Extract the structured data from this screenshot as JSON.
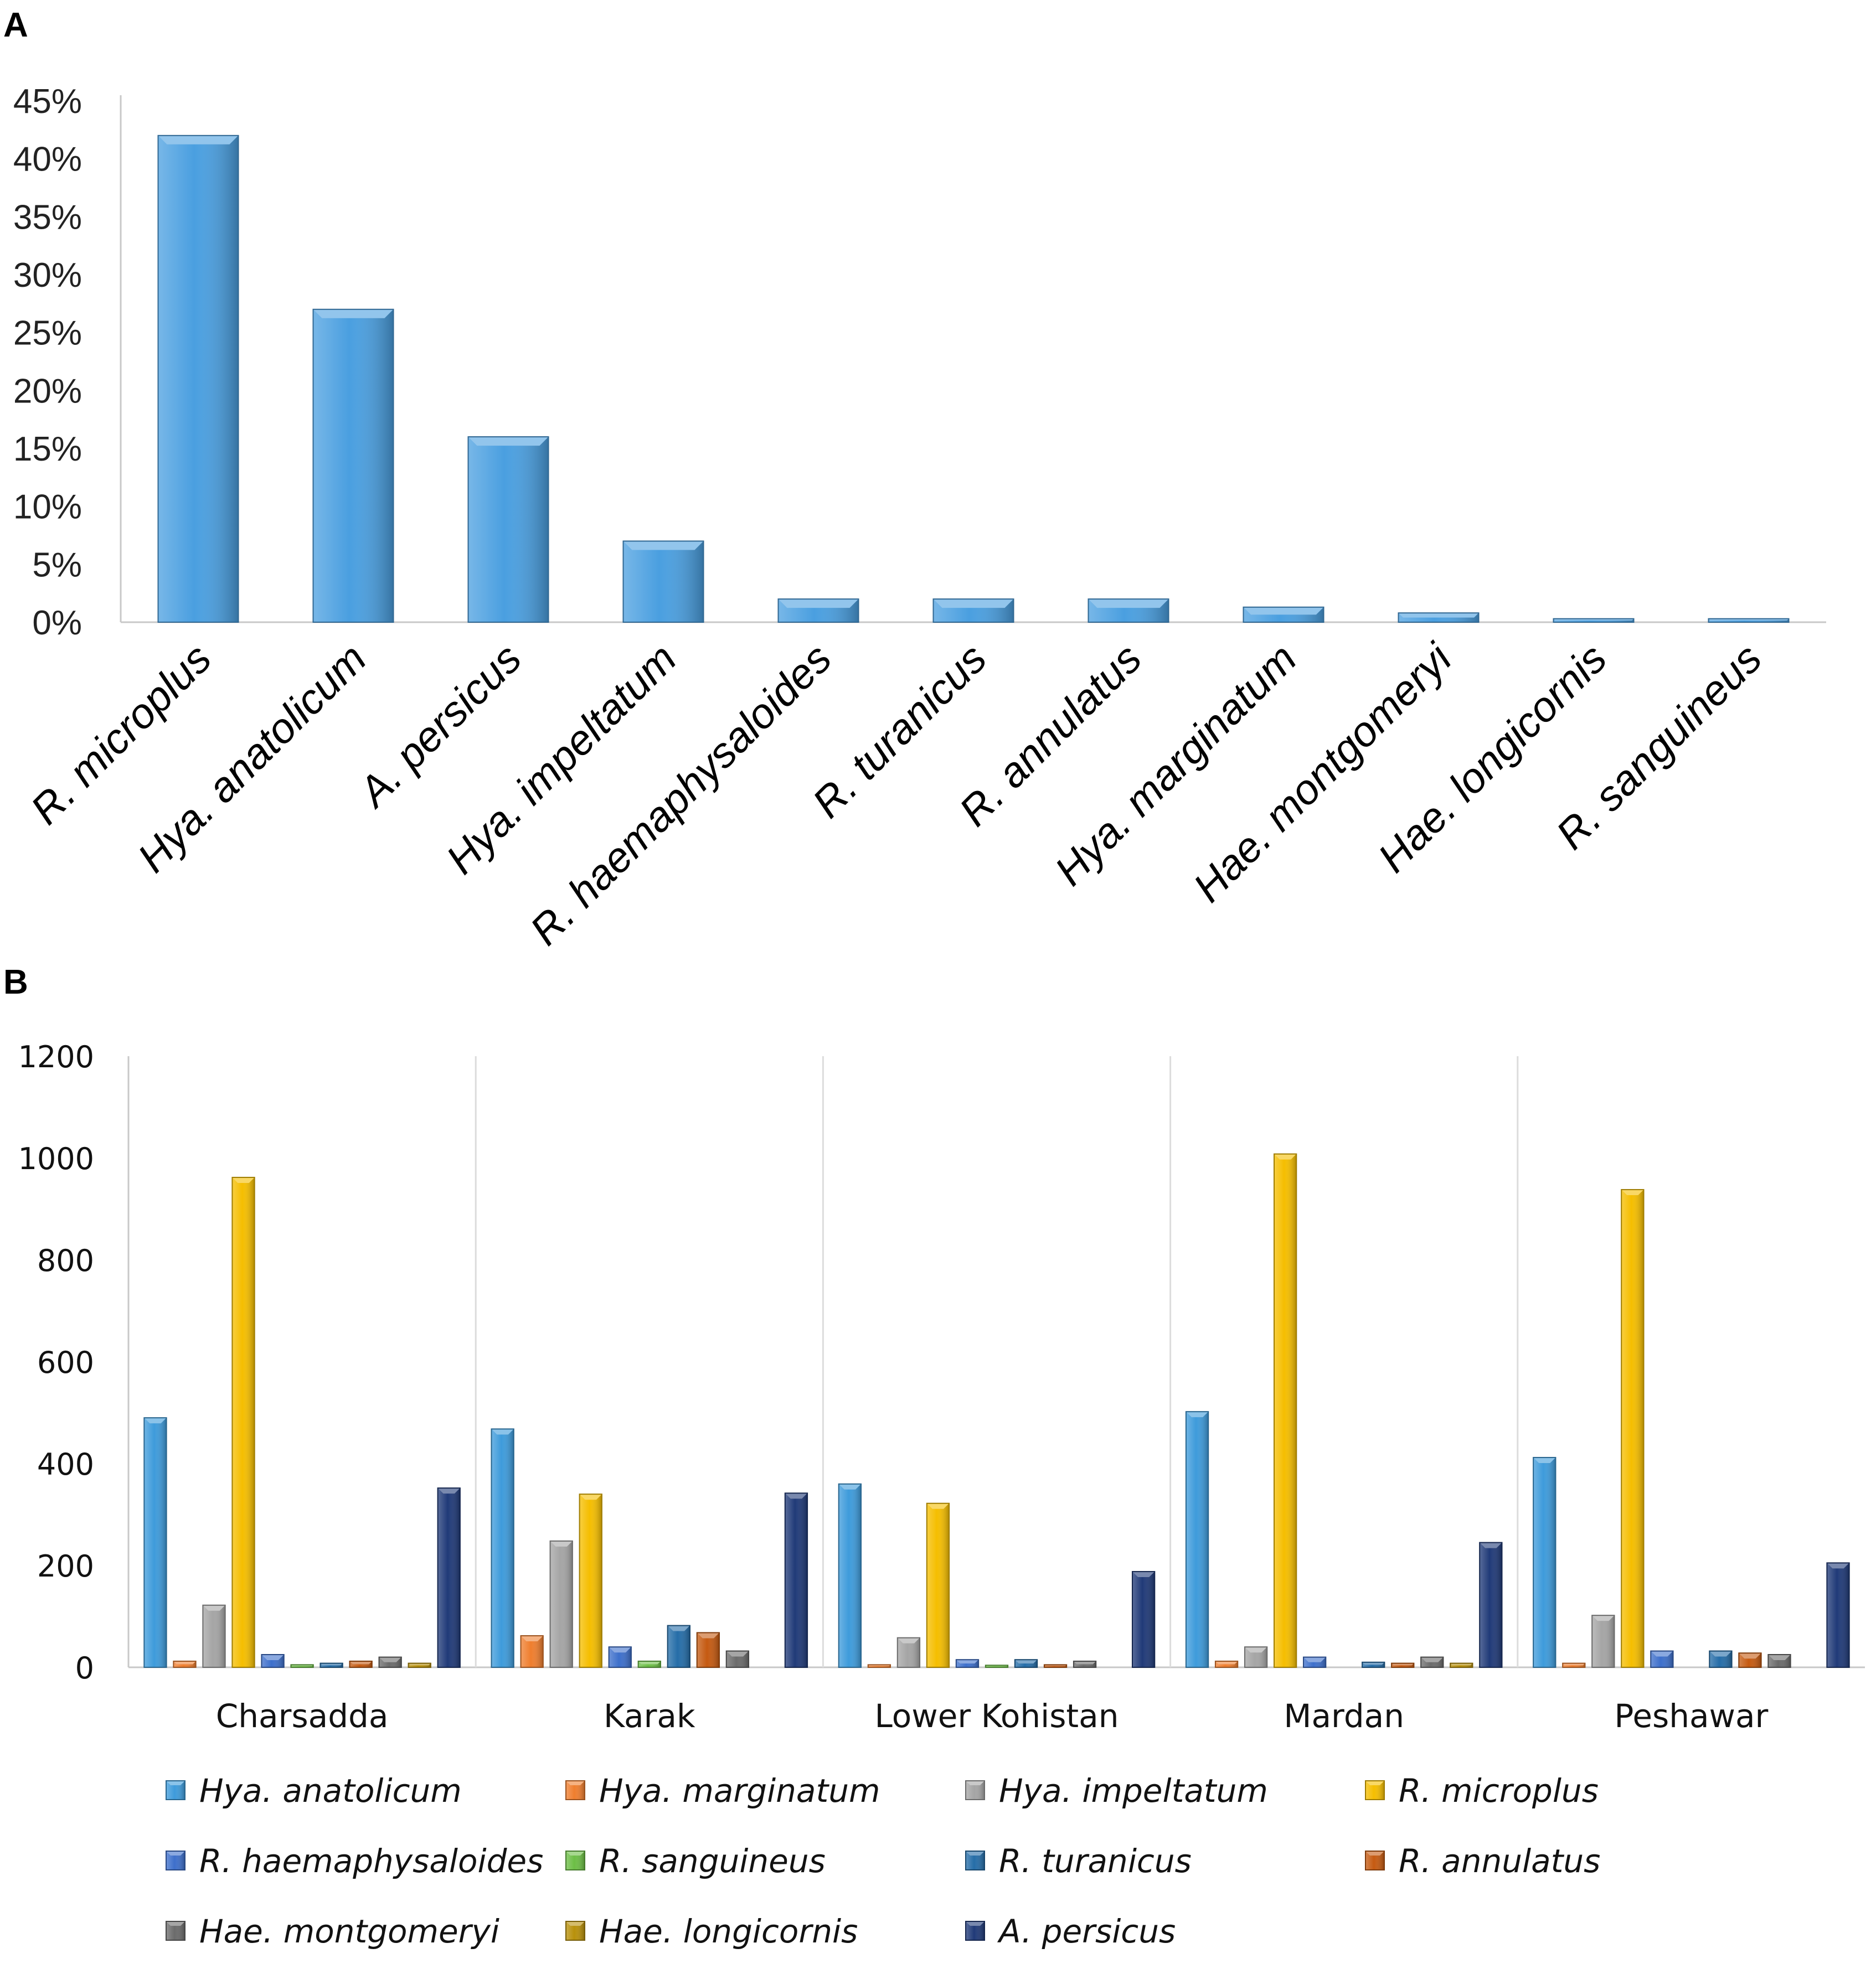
{
  "panels": {
    "a_label": "A",
    "b_label": "B"
  },
  "chart_data": [
    {
      "type": "bar",
      "panel": "A",
      "categories": [
        "R. microplus",
        "Hya. anatolicum",
        "A. persicus",
        "Hya. impeltatum",
        "R. haemaphysaloides",
        "R. turanicus",
        "R. annulatus",
        "Hya. marginatum",
        "Hae. montgomeryi",
        "Hae. longicornis",
        "R. sanguineus"
      ],
      "values": [
        42,
        27,
        16,
        7,
        2,
        2,
        2,
        1.3,
        0.8,
        0.3,
        0.3
      ],
      "value_unit": "%",
      "ylim": [
        0,
        45
      ],
      "yticks": [
        "0%",
        "5%",
        "10%",
        "15%",
        "20%",
        "25%",
        "30%",
        "35%",
        "40%",
        "45%"
      ],
      "title": "",
      "xlabel": "",
      "ylabel": "",
      "grid": false,
      "color": "#4A9FE0"
    },
    {
      "type": "bar",
      "panel": "B",
      "categories": [
        "Charsadda",
        "Karak",
        "Lower Kohistan",
        "Mardan",
        "Peshawar"
      ],
      "ylim": [
        0,
        1200
      ],
      "yticks": [
        "0",
        "200",
        "400",
        "600",
        "800",
        "1000",
        "1200"
      ],
      "title": "",
      "xlabel": "",
      "ylabel": "",
      "grid": false,
      "legend_position": "bottom",
      "series": [
        {
          "name": "Hya. anatolicum",
          "color": "#3E9BDB",
          "values": [
            490,
            468,
            360,
            502,
            412
          ]
        },
        {
          "name": "Hya. marginatum",
          "color": "#EF7E2E",
          "values": [
            12,
            62,
            5,
            12,
            8
          ]
        },
        {
          "name": "Hya. impeltatum",
          "color": "#A5A5A5",
          "values": [
            122,
            248,
            58,
            40,
            102
          ]
        },
        {
          "name": "R. microplus",
          "color": "#F5BE00",
          "values": [
            962,
            340,
            322,
            1008,
            938
          ]
        },
        {
          "name": "R. haemaphysaloides",
          "color": "#3D6FCB",
          "values": [
            25,
            40,
            15,
            20,
            32
          ]
        },
        {
          "name": "R. sanguineus",
          "color": "#6CBE45",
          "values": [
            5,
            12,
            4,
            0,
            0
          ]
        },
        {
          "name": "R. turanicus",
          "color": "#256DA8",
          "values": [
            8,
            82,
            15,
            10,
            32
          ]
        },
        {
          "name": "R. annulatus",
          "color": "#C55A11",
          "values": [
            12,
            68,
            5,
            8,
            28
          ]
        },
        {
          "name": "Hae. montgomeryi",
          "color": "#6B6B6B",
          "values": [
            20,
            32,
            12,
            20,
            25
          ]
        },
        {
          "name": "Hae. longicornis",
          "color": "#B8900A",
          "values": [
            8,
            0,
            0,
            8,
            0
          ]
        },
        {
          "name": "A. persicus",
          "color": "#203A78",
          "values": [
            352,
            342,
            188,
            245,
            205
          ]
        }
      ]
    }
  ]
}
